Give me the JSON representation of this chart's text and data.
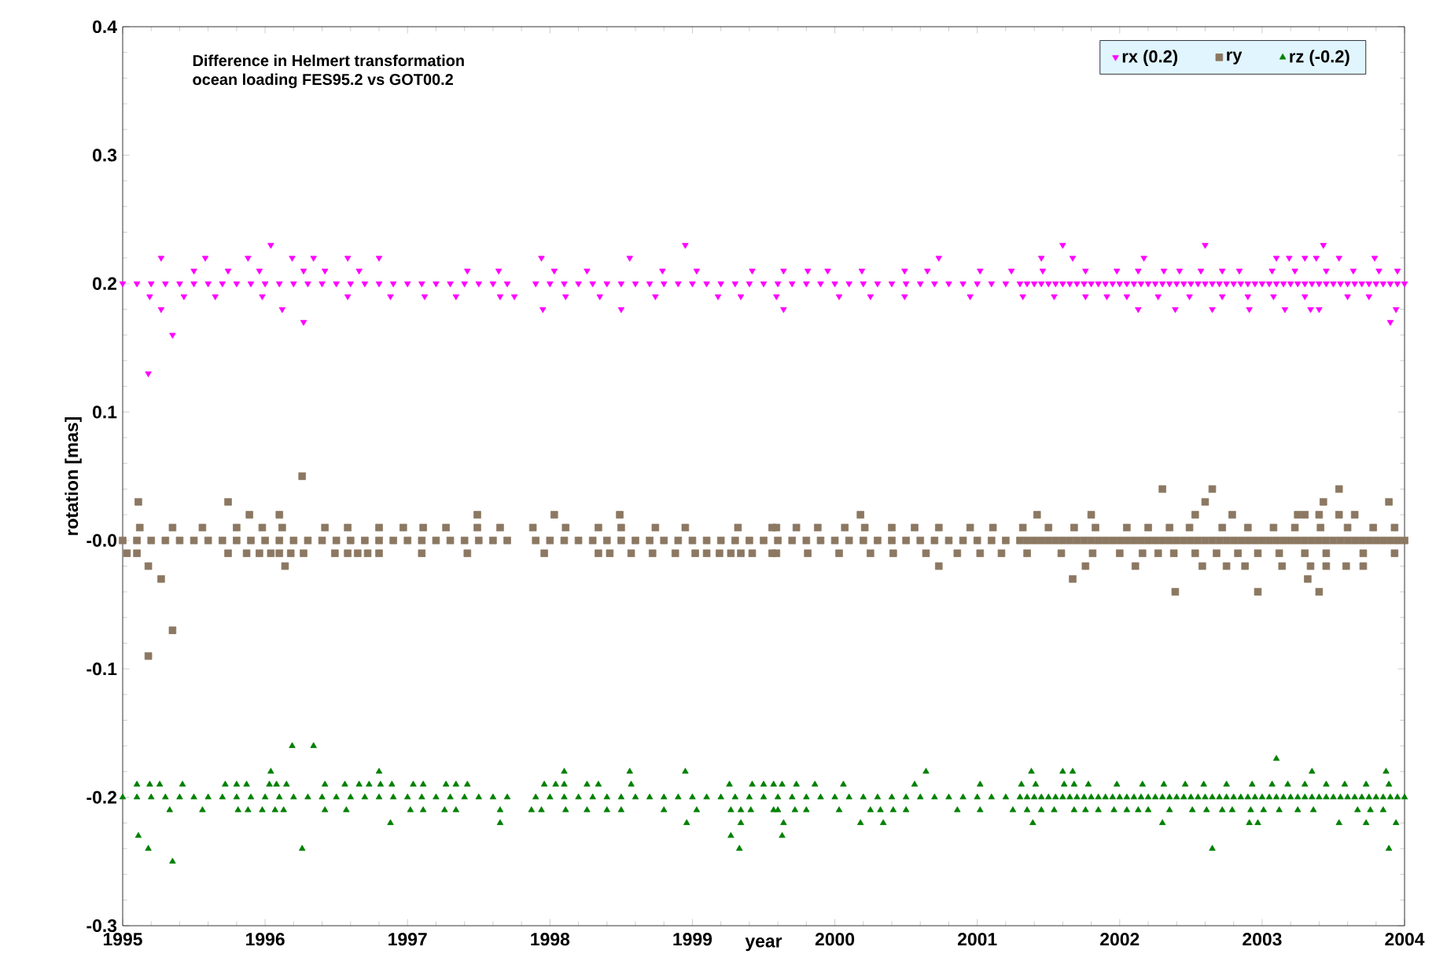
{
  "chart_data": {
    "type": "scatter",
    "xlabel": "year",
    "ylabel": "rotation [mas]",
    "annotations": [
      "Difference in Helmert transformation",
      "ocean loading  FES95.2 vs GOT00.2"
    ],
    "xlim": [
      1995,
      2004
    ],
    "xticks": [
      1995,
      1996,
      1997,
      1998,
      1999,
      2000,
      2001,
      2002,
      2003,
      2004
    ],
    "ylim": [
      -0.3,
      0.4
    ],
    "yticks": [
      -0.3,
      -0.2,
      -0.1,
      {
        "value": 0,
        "label": "-0.0"
      },
      0.1,
      0.2,
      0.3,
      0.4
    ],
    "grid": false,
    "legend": "top right",
    "series": [
      {
        "name": "rx (0.2)",
        "color": "#ff00ff",
        "marker": "triangle-down",
        "x": [
          1995.0,
          1995.1,
          1995.2,
          1995.3,
          1995.4,
          1995.5,
          1995.6,
          1995.7,
          1995.8,
          1995.9,
          1996.0,
          1996.1,
          1996.2,
          1996.3,
          1996.4,
          1996.5,
          1996.6,
          1996.7,
          1996.8,
          1996.9,
          1997.0,
          1997.1,
          1997.2,
          1997.3,
          1997.4,
          1997.5,
          1997.6,
          1997.7,
          1997.9,
          1998.0,
          1998.1,
          1998.2,
          1998.3,
          1998.4,
          1998.5,
          1998.6,
          1998.7,
          1998.8,
          1998.9,
          1999.0,
          1999.1,
          1999.2,
          1999.3,
          1999.4,
          1999.5,
          1999.6,
          1999.7,
          1999.8,
          1999.9,
          2000.0,
          2000.1,
          2000.2,
          2000.3,
          2000.4,
          2000.5,
          2000.6,
          2000.7,
          2000.8,
          2000.9,
          2001.0,
          2001.1,
          2001.2,
          2001.3,
          2001.4,
          2001.5,
          2001.6,
          2001.7,
          2001.8,
          2001.9,
          2002.0,
          2002.1,
          2002.2,
          2002.3,
          2002.4,
          2002.5,
          2002.6,
          2002.7,
          2002.8,
          2002.9,
          2003.0,
          2003.1,
          2003.2,
          2003.3,
          2003.4,
          2003.5,
          2003.6,
          2003.7,
          2003.8,
          2003.9,
          2004.0,
          2001.35,
          2001.45,
          2001.55,
          2001.65,
          2001.75,
          2001.85,
          2001.95,
          2002.05,
          2002.15,
          2002.25,
          2002.35,
          2002.45,
          2002.55,
          2002.65,
          2002.75,
          2002.85,
          2002.95,
          2003.05,
          2003.15,
          2003.25,
          2003.35,
          2003.45,
          2003.55,
          2003.65,
          2003.75,
          2003.85,
          2003.95,
          1996.04,
          1998.95,
          2001.6,
          2002.6,
          2003.43,
          1995.27,
          1995.58,
          1995.88,
          1996.19,
          1996.34,
          1996.58,
          1996.8,
          1997.94,
          1998.56,
          2000.73,
          2001.45,
          2001.67,
          2002.17,
          2003.1,
          2003.19,
          2003.3,
          2003.38,
          2003.54,
          2003.79,
          1995.5,
          1995.74,
          1995.96,
          1996.27,
          1996.42,
          1996.66,
          1997.42,
          1997.64,
          1998.03,
          1998.26,
          1998.79,
          1999.03,
          1999.42,
          1999.64,
          1999.81,
          1999.95,
          2000.19,
          2000.49,
          2000.65,
          2001.02,
          2001.24,
          2001.46,
          2001.76,
          2001.98,
          2002.13,
          2002.31,
          2002.42,
          2002.57,
          2002.72,
          2002.84,
          2003.07,
          2003.23,
          2003.45,
          2003.64,
          2003.82,
          2003.95,
          1995.19,
          1995.43,
          1995.65,
          1995.98,
          1996.58,
          1996.88,
          1997.12,
          1997.34,
          1997.65,
          1997.75,
          1998.11,
          1998.35,
          1998.74,
          1999.18,
          1999.34,
          1999.59,
          2000.03,
          2000.25,
          2000.49,
          2000.95,
          2001.32,
          2001.54,
          2001.76,
          2001.91,
          2002.05,
          2002.27,
          2002.49,
          2002.72,
          2002.9,
          2003.08,
          2003.3,
          2003.6,
          2003.75,
          1995.27,
          1996.12,
          1997.95,
          1998.5,
          1999.64,
          2002.13,
          2002.39,
          2002.65,
          2002.91,
          2003.16,
          2003.34,
          2003.4,
          2003.94,
          1996.27,
          2003.9,
          1995.35,
          1995.18
        ],
        "values": [
          0.2,
          0.2,
          0.2,
          0.2,
          0.2,
          0.2,
          0.2,
          0.2,
          0.2,
          0.2,
          0.2,
          0.2,
          0.2,
          0.2,
          0.2,
          0.2,
          0.2,
          0.2,
          0.2,
          0.2,
          0.2,
          0.2,
          0.2,
          0.2,
          0.2,
          0.2,
          0.2,
          0.2,
          0.2,
          0.2,
          0.2,
          0.2,
          0.2,
          0.2,
          0.2,
          0.2,
          0.2,
          0.2,
          0.2,
          0.2,
          0.2,
          0.2,
          0.2,
          0.2,
          0.2,
          0.2,
          0.2,
          0.2,
          0.2,
          0.2,
          0.2,
          0.2,
          0.2,
          0.2,
          0.2,
          0.2,
          0.2,
          0.2,
          0.2,
          0.2,
          0.2,
          0.2,
          0.2,
          0.2,
          0.2,
          0.2,
          0.2,
          0.2,
          0.2,
          0.2,
          0.2,
          0.2,
          0.2,
          0.2,
          0.2,
          0.2,
          0.2,
          0.2,
          0.2,
          0.2,
          0.2,
          0.2,
          0.2,
          0.2,
          0.2,
          0.2,
          0.2,
          0.2,
          0.2,
          0.2,
          0.2,
          0.2,
          0.2,
          0.2,
          0.2,
          0.2,
          0.2,
          0.2,
          0.2,
          0.2,
          0.2,
          0.2,
          0.2,
          0.2,
          0.2,
          0.2,
          0.2,
          0.2,
          0.2,
          0.2,
          0.2,
          0.2,
          0.2,
          0.2,
          0.2,
          0.2,
          0.2,
          0.23,
          0.23,
          0.23,
          0.23,
          0.23,
          0.22,
          0.22,
          0.22,
          0.22,
          0.22,
          0.22,
          0.22,
          0.22,
          0.22,
          0.22,
          0.22,
          0.22,
          0.22,
          0.22,
          0.22,
          0.22,
          0.22,
          0.22,
          0.22,
          0.21,
          0.21,
          0.21,
          0.21,
          0.21,
          0.21,
          0.21,
          0.21,
          0.21,
          0.21,
          0.21,
          0.21,
          0.21,
          0.21,
          0.21,
          0.21,
          0.21,
          0.21,
          0.21,
          0.21,
          0.21,
          0.21,
          0.21,
          0.21,
          0.21,
          0.21,
          0.21,
          0.21,
          0.21,
          0.21,
          0.21,
          0.21,
          0.21,
          0.21,
          0.21,
          0.21,
          0.19,
          0.19,
          0.19,
          0.19,
          0.19,
          0.19,
          0.19,
          0.19,
          0.19,
          0.19,
          0.19,
          0.19,
          0.19,
          0.19,
          0.19,
          0.19,
          0.19,
          0.19,
          0.19,
          0.19,
          0.19,
          0.19,
          0.19,
          0.19,
          0.19,
          0.19,
          0.19,
          0.19,
          0.19,
          0.19,
          0.19,
          0.19,
          0.19,
          0.18,
          0.18,
          0.18,
          0.18,
          0.18,
          0.18,
          0.18,
          0.18,
          0.18,
          0.18,
          0.18,
          0.18,
          0.18,
          0.17,
          0.17,
          0.16,
          0.13
        ]
      },
      {
        "name": "ry",
        "color": "#8c7862",
        "marker": "square",
        "x": [
          1995.0,
          1995.1,
          1995.2,
          1995.3,
          1995.4,
          1995.5,
          1995.6,
          1995.7,
          1995.8,
          1995.9,
          1996.0,
          1996.1,
          1996.2,
          1996.3,
          1996.4,
          1996.5,
          1996.6,
          1996.7,
          1996.8,
          1996.9,
          1997.0,
          1997.1,
          1997.2,
          1997.3,
          1997.4,
          1997.5,
          1997.6,
          1997.7,
          1997.9,
          1998.0,
          1998.1,
          1998.2,
          1998.3,
          1998.4,
          1998.5,
          1998.6,
          1998.7,
          1998.8,
          1998.9,
          1999.0,
          1999.1,
          1999.2,
          1999.3,
          1999.4,
          1999.5,
          1999.6,
          1999.7,
          1999.8,
          1999.9,
          2000.0,
          2000.1,
          2000.2,
          2000.3,
          2000.4,
          2000.5,
          2000.6,
          2000.7,
          2000.8,
          2000.9,
          2001.0,
          2001.1,
          2001.2,
          2001.3,
          2001.4,
          2001.5,
          2001.6,
          2001.7,
          2001.8,
          2001.9,
          2002.0,
          2002.1,
          2002.2,
          2002.3,
          2002.4,
          2002.5,
          2002.6,
          2002.7,
          2002.8,
          2002.9,
          2003.0,
          2003.1,
          2003.2,
          2003.3,
          2003.4,
          2003.5,
          2003.6,
          2003.7,
          2003.8,
          2003.9,
          2004.0,
          2001.35,
          2001.45,
          2001.55,
          2001.65,
          2001.75,
          2001.85,
          2001.95,
          2002.05,
          2002.15,
          2002.25,
          2002.35,
          2002.45,
          2002.55,
          2002.65,
          2002.75,
          2002.85,
          2002.95,
          2003.05,
          2003.15,
          2003.25,
          2003.35,
          2003.45,
          2003.55,
          2003.65,
          2003.75,
          2003.85,
          2003.95,
          1996.26,
          2002.3,
          2002.65,
          2003.54,
          1995.11,
          1995.74,
          2002.6,
          2003.43,
          2003.89,
          1995.89,
          1996.1,
          1997.49,
          1998.03,
          1998.49,
          2000.18,
          2001.42,
          2001.8,
          2002.53,
          2002.79,
          2003.25,
          2003.3,
          2003.4,
          2003.54,
          2003.65,
          1995.12,
          1995.35,
          1995.56,
          1995.8,
          1995.98,
          1996.12,
          1996.42,
          1996.58,
          1996.8,
          1996.97,
          1997.11,
          1997.27,
          1997.49,
          1997.65,
          1997.88,
          1998.11,
          1998.34,
          1998.5,
          1998.74,
          1998.95,
          1999.32,
          1999.56,
          1999.59,
          1999.73,
          1999.88,
          2000.07,
          2000.21,
          2000.4,
          2000.56,
          2000.73,
          2000.95,
          2001.11,
          2001.32,
          2001.5,
          2001.68,
          2001.83,
          2002.05,
          2002.2,
          2002.35,
          2002.49,
          2002.72,
          2002.9,
          2003.08,
          2003.23,
          2003.41,
          2003.6,
          2003.78,
          2003.93,
          1995.03,
          1995.1,
          1995.74,
          1995.87,
          1995.96,
          1996.04,
          1996.1,
          1996.18,
          1996.27,
          1996.49,
          1996.58,
          1996.65,
          1996.72,
          1996.8,
          1997.1,
          1997.42,
          1997.96,
          1998.34,
          1998.42,
          1998.57,
          1998.72,
          1998.88,
          1999.02,
          1999.1,
          1999.19,
          1999.27,
          1999.34,
          1999.42,
          1999.56,
          1999.59,
          1999.81,
          2000.03,
          2000.25,
          2000.41,
          2000.64,
          2000.86,
          2001.02,
          2001.17,
          2001.35,
          2001.59,
          2001.81,
          2002.0,
          2002.16,
          2002.27,
          2002.38,
          2002.53,
          2002.68,
          2002.83,
          2002.97,
          2003.12,
          2003.3,
          2003.45,
          2003.71,
          2003.93,
          1995.18,
          1996.14,
          2000.73,
          2001.76,
          2002.11,
          2002.58,
          2002.75,
          2002.88,
          2003.14,
          2003.34,
          2003.45,
          2003.59,
          2003.71,
          1995.27,
          2001.67,
          2003.32,
          2002.39,
          2002.97,
          2003.4,
          1995.35,
          1995.18
        ],
        "values": [
          0,
          0,
          0,
          0,
          0,
          0,
          0,
          0,
          0,
          0,
          0,
          0,
          0,
          0,
          0,
          0,
          0,
          0,
          0,
          0,
          0,
          0,
          0,
          0,
          0,
          0,
          0,
          0,
          0,
          0,
          0,
          0,
          0,
          0,
          0,
          0,
          0,
          0,
          0,
          0,
          0,
          0,
          0,
          0,
          0,
          0,
          0,
          0,
          0,
          0,
          0,
          0,
          0,
          0,
          0,
          0,
          0,
          0,
          0,
          0,
          0,
          0,
          0,
          0,
          0,
          0,
          0,
          0,
          0,
          0,
          0,
          0,
          0,
          0,
          0,
          0,
          0,
          0,
          0,
          0,
          0,
          0,
          0,
          0,
          0,
          0,
          0,
          0,
          0,
          0,
          0,
          0,
          0,
          0,
          0,
          0,
          0,
          0,
          0,
          0,
          0,
          0,
          0,
          0,
          0,
          0,
          0,
          0,
          0,
          0,
          0,
          0,
          0,
          0,
          0,
          0,
          0,
          0.05,
          0.04,
          0.04,
          0.04,
          0.03,
          0.03,
          0.03,
          0.03,
          0.03,
          0.02,
          0.02,
          0.02,
          0.02,
          0.02,
          0.02,
          0.02,
          0.02,
          0.02,
          0.02,
          0.02,
          0.02,
          0.02,
          0.02,
          0.02,
          0.01,
          0.01,
          0.01,
          0.01,
          0.01,
          0.01,
          0.01,
          0.01,
          0.01,
          0.01,
          0.01,
          0.01,
          0.01,
          0.01,
          0.01,
          0.01,
          0.01,
          0.01,
          0.01,
          0.01,
          0.01,
          0.01,
          0.01,
          0.01,
          0.01,
          0.01,
          0.01,
          0.01,
          0.01,
          0.01,
          0.01,
          0.01,
          0.01,
          0.01,
          0.01,
          0.01,
          0.01,
          0.01,
          0.01,
          0.01,
          0.01,
          0.01,
          0.01,
          0.01,
          0.01,
          0.01,
          0.01,
          0.01,
          -0.01,
          -0.01,
          -0.01,
          -0.01,
          -0.01,
          -0.01,
          -0.01,
          -0.01,
          -0.01,
          -0.01,
          -0.01,
          -0.01,
          -0.01,
          -0.01,
          -0.01,
          -0.01,
          -0.01,
          -0.01,
          -0.01,
          -0.01,
          -0.01,
          -0.01,
          -0.01,
          -0.01,
          -0.01,
          -0.01,
          -0.01,
          -0.01,
          -0.01,
          -0.01,
          -0.01,
          -0.01,
          -0.01,
          -0.01,
          -0.01,
          -0.01,
          -0.01,
          -0.01,
          -0.01,
          -0.01,
          -0.01,
          -0.01,
          -0.01,
          -0.01,
          -0.01,
          -0.01,
          -0.01,
          -0.01,
          -0.01,
          -0.01,
          -0.01,
          -0.01,
          -0.01,
          -0.01,
          -0.02,
          -0.02,
          -0.02,
          -0.02,
          -0.02,
          -0.02,
          -0.02,
          -0.02,
          -0.02,
          -0.02,
          -0.02,
          -0.02,
          -0.02,
          -0.03,
          -0.03,
          -0.03,
          -0.04,
          -0.04,
          -0.04,
          -0.07,
          -0.09
        ]
      },
      {
        "name": "rz (-0.2)",
        "color": "#008000",
        "marker": "triangle",
        "x": [
          1995.0,
          1995.1,
          1995.2,
          1995.3,
          1995.4,
          1995.5,
          1995.6,
          1995.7,
          1995.8,
          1995.9,
          1996.0,
          1996.1,
          1996.2,
          1996.3,
          1996.4,
          1996.5,
          1996.6,
          1996.7,
          1996.8,
          1996.9,
          1997.0,
          1997.1,
          1997.2,
          1997.3,
          1997.4,
          1997.5,
          1997.6,
          1997.7,
          1997.9,
          1998.0,
          1998.1,
          1998.2,
          1998.3,
          1998.4,
          1998.5,
          1998.6,
          1998.7,
          1998.8,
          1998.9,
          1999.0,
          1999.1,
          1999.2,
          1999.3,
          1999.4,
          1999.5,
          1999.6,
          1999.7,
          1999.8,
          1999.9,
          2000.0,
          2000.1,
          2000.2,
          2000.3,
          2000.4,
          2000.5,
          2000.6,
          2000.7,
          2000.8,
          2000.9,
          2001.0,
          2001.1,
          2001.2,
          2001.3,
          2001.4,
          2001.5,
          2001.6,
          2001.7,
          2001.8,
          2001.9,
          2002.0,
          2002.1,
          2002.2,
          2002.3,
          2002.4,
          2002.5,
          2002.6,
          2002.7,
          2002.8,
          2002.9,
          2003.0,
          2003.1,
          2003.2,
          2003.3,
          2003.4,
          2003.5,
          2003.6,
          2003.7,
          2003.8,
          2003.9,
          2004.0,
          2001.35,
          2001.45,
          2001.55,
          2001.65,
          2001.75,
          2001.85,
          2001.95,
          2002.05,
          2002.15,
          2002.25,
          2002.35,
          2002.45,
          2002.55,
          2002.65,
          2002.75,
          2002.85,
          2002.95,
          2003.05,
          2003.15,
          2003.25,
          2003.35,
          2003.45,
          2003.55,
          2003.65,
          2003.75,
          2003.85,
          2003.95,
          1996.19,
          1996.34,
          2003.1,
          1996.04,
          1996.8,
          1998.1,
          1998.56,
          1998.95,
          2000.64,
          2001.38,
          2001.6,
          2001.67,
          2003.35,
          2003.87,
          1995.1,
          1995.19,
          1995.26,
          1995.42,
          1995.72,
          1995.8,
          1995.87,
          1996.03,
          1996.08,
          1996.15,
          1996.42,
          1996.56,
          1996.66,
          1996.73,
          1996.81,
          1996.89,
          1997.04,
          1997.11,
          1997.27,
          1997.34,
          1997.42,
          1997.96,
          1998.04,
          1998.1,
          1998.26,
          1998.34,
          1998.57,
          1999.26,
          1999.42,
          1999.5,
          1999.57,
          1999.63,
          1999.73,
          1999.86,
          2000.06,
          2000.56,
          2001.02,
          2001.31,
          2001.41,
          2001.61,
          2001.68,
          2001.78,
          2001.98,
          2002.16,
          2002.31,
          2002.46,
          2002.59,
          2002.75,
          2002.93,
          2003.07,
          2003.18,
          2003.3,
          2003.45,
          2003.58,
          2003.73,
          2003.89,
          1995.33,
          1995.56,
          1995.81,
          1995.88,
          1995.98,
          1996.07,
          1996.13,
          1996.42,
          1996.57,
          1997.02,
          1997.11,
          1997.26,
          1997.34,
          1997.65,
          1997.87,
          1997.94,
          1998.11,
          1998.26,
          1998.4,
          1998.5,
          1998.8,
          1999.03,
          1999.27,
          1999.34,
          1999.41,
          1999.57,
          1999.6,
          1999.72,
          1999.8,
          2000.03,
          2000.25,
          2000.32,
          2000.41,
          2000.5,
          2000.86,
          2001.02,
          2001.25,
          2001.35,
          2001.45,
          2001.54,
          2001.68,
          2001.76,
          2001.85,
          2001.96,
          2002.05,
          2002.13,
          2002.2,
          2002.35,
          2002.51,
          2002.61,
          2002.72,
          2002.79,
          2002.92,
          2003.01,
          2003.12,
          2003.25,
          2003.36,
          2003.67,
          2003.76,
          2003.85,
          1996.88,
          1997.65,
          1998.96,
          1999.34,
          1999.64,
          2000.18,
          2000.34,
          2001.39,
          2002.3,
          2002.91,
          2002.97,
          2003.54,
          2003.73,
          2003.94,
          1995.11,
          1999.27,
          1999.63,
          1995.18,
          1996.26,
          1999.33,
          2002.65,
          2003.89,
          1995.35
        ],
        "values": [
          -0.2,
          -0.2,
          -0.2,
          -0.2,
          -0.2,
          -0.2,
          -0.2,
          -0.2,
          -0.2,
          -0.2,
          -0.2,
          -0.2,
          -0.2,
          -0.2,
          -0.2,
          -0.2,
          -0.2,
          -0.2,
          -0.2,
          -0.2,
          -0.2,
          -0.2,
          -0.2,
          -0.2,
          -0.2,
          -0.2,
          -0.2,
          -0.2,
          -0.2,
          -0.2,
          -0.2,
          -0.2,
          -0.2,
          -0.2,
          -0.2,
          -0.2,
          -0.2,
          -0.2,
          -0.2,
          -0.2,
          -0.2,
          -0.2,
          -0.2,
          -0.2,
          -0.2,
          -0.2,
          -0.2,
          -0.2,
          -0.2,
          -0.2,
          -0.2,
          -0.2,
          -0.2,
          -0.2,
          -0.2,
          -0.2,
          -0.2,
          -0.2,
          -0.2,
          -0.2,
          -0.2,
          -0.2,
          -0.2,
          -0.2,
          -0.2,
          -0.2,
          -0.2,
          -0.2,
          -0.2,
          -0.2,
          -0.2,
          -0.2,
          -0.2,
          -0.2,
          -0.2,
          -0.2,
          -0.2,
          -0.2,
          -0.2,
          -0.2,
          -0.2,
          -0.2,
          -0.2,
          -0.2,
          -0.2,
          -0.2,
          -0.2,
          -0.2,
          -0.2,
          -0.2,
          -0.2,
          -0.2,
          -0.2,
          -0.2,
          -0.2,
          -0.2,
          -0.2,
          -0.2,
          -0.2,
          -0.2,
          -0.2,
          -0.2,
          -0.2,
          -0.2,
          -0.2,
          -0.2,
          -0.2,
          -0.2,
          -0.2,
          -0.2,
          -0.2,
          -0.2,
          -0.2,
          -0.2,
          -0.2,
          -0.2,
          -0.2,
          -0.16,
          -0.16,
          -0.17,
          -0.18,
          -0.18,
          -0.18,
          -0.18,
          -0.18,
          -0.18,
          -0.18,
          -0.18,
          -0.18,
          -0.18,
          -0.18,
          -0.19,
          -0.19,
          -0.19,
          -0.19,
          -0.19,
          -0.19,
          -0.19,
          -0.19,
          -0.19,
          -0.19,
          -0.19,
          -0.19,
          -0.19,
          -0.19,
          -0.19,
          -0.19,
          -0.19,
          -0.19,
          -0.19,
          -0.19,
          -0.19,
          -0.19,
          -0.19,
          -0.19,
          -0.19,
          -0.19,
          -0.19,
          -0.19,
          -0.19,
          -0.19,
          -0.19,
          -0.19,
          -0.19,
          -0.19,
          -0.19,
          -0.19,
          -0.19,
          -0.19,
          -0.19,
          -0.19,
          -0.19,
          -0.19,
          -0.19,
          -0.19,
          -0.19,
          -0.19,
          -0.19,
          -0.19,
          -0.19,
          -0.19,
          -0.19,
          -0.19,
          -0.19,
          -0.19,
          -0.19,
          -0.19,
          -0.21,
          -0.21,
          -0.21,
          -0.21,
          -0.21,
          -0.21,
          -0.21,
          -0.21,
          -0.21,
          -0.21,
          -0.21,
          -0.21,
          -0.21,
          -0.21,
          -0.21,
          -0.21,
          -0.21,
          -0.21,
          -0.21,
          -0.21,
          -0.21,
          -0.21,
          -0.21,
          -0.21,
          -0.21,
          -0.21,
          -0.21,
          -0.21,
          -0.21,
          -0.21,
          -0.21,
          -0.21,
          -0.21,
          -0.21,
          -0.21,
          -0.21,
          -0.21,
          -0.21,
          -0.21,
          -0.21,
          -0.21,
          -0.21,
          -0.21,
          -0.21,
          -0.21,
          -0.21,
          -0.21,
          -0.21,
          -0.21,
          -0.21,
          -0.21,
          -0.21,
          -0.21,
          -0.21,
          -0.21,
          -0.21,
          -0.21,
          -0.21,
          -0.21,
          -0.21,
          -0.22,
          -0.22,
          -0.22,
          -0.22,
          -0.22,
          -0.22,
          -0.22,
          -0.22,
          -0.22,
          -0.22,
          -0.22,
          -0.22,
          -0.22,
          -0.22,
          -0.23,
          -0.23,
          -0.23,
          -0.24,
          -0.24,
          -0.24,
          -0.24,
          -0.24,
          -0.25
        ]
      }
    ]
  }
}
